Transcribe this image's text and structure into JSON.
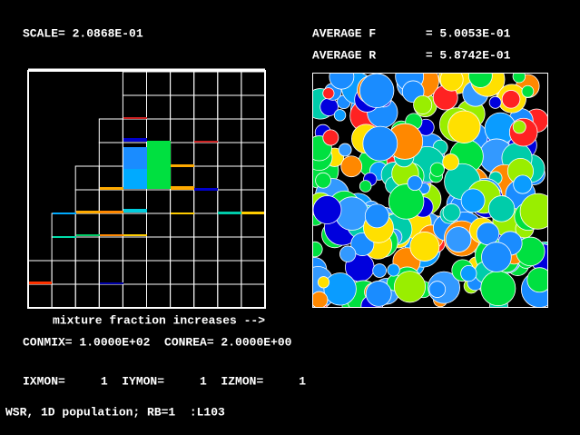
{
  "header": {
    "scale": "SCALE= 2.0868E-01",
    "average_f": "AVERAGE F       = 5.0053E-01",
    "average_r": "AVERAGE R       = 5.8742E-01"
  },
  "left_panel": {
    "caption": "mixture fraction increases -->"
  },
  "footer": {
    "constants": "CONMIX= 1.0000E+02  CONREA= 2.0000E+00",
    "monitors": "IXMON=     1  IYMON=     1  IZMON=     1",
    "status": "WSR, 1D population; RB=1  :L103"
  }
}
